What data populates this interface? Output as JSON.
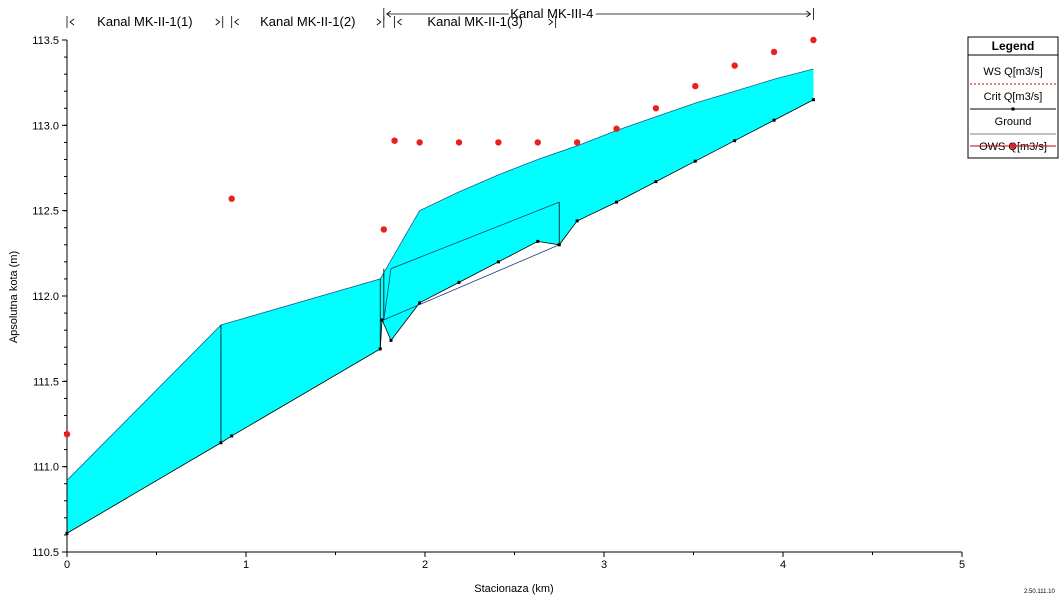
{
  "chart_data": {
    "type": "line",
    "xlabel": "Stacionaza (km)",
    "ylabel": "Apsolutna kota (m)",
    "xlim": [
      0,
      5
    ],
    "ylim": [
      110.5,
      113.5
    ],
    "x_ticks": [
      "0",
      "1",
      "2",
      "3",
      "4",
      "5"
    ],
    "y_ticks": [
      "110.5",
      "111.0",
      "111.5",
      "112.0",
      "112.5",
      "113.0",
      "113.5"
    ],
    "reaches": [
      {
        "label": "Kanal MK-II-1(1)",
        "x_start": 0.0,
        "x_end": 0.87
      },
      {
        "label": "Kanal MK-II-1(2)",
        "x_start": 0.92,
        "x_end": 1.77
      },
      {
        "label": "Kanal MK-II-1(3)",
        "x_start": 1.83,
        "x_end": 2.73
      },
      {
        "label": "Kanal MK-III-4",
        "x_start": 1.77,
        "x_end": 4.17
      }
    ],
    "legend": {
      "title": "Legend",
      "position": "top-right",
      "entries": [
        "WS  Q[m3/s]",
        "Crit  Q[m3/s]",
        "Ground",
        "OWS  Q[m3/s]"
      ]
    },
    "series": [
      {
        "name": "Ground",
        "x": [
          0.0,
          0.86,
          0.92,
          1.75,
          1.76,
          1.81,
          1.97,
          2.19,
          2.41,
          2.63,
          2.75,
          2.85,
          3.07,
          3.29,
          3.51,
          3.73,
          3.95,
          4.17
        ],
        "y": [
          110.61,
          111.14,
          111.18,
          111.69,
          111.86,
          111.74,
          111.96,
          112.08,
          112.2,
          112.32,
          112.3,
          112.44,
          112.55,
          112.67,
          112.79,
          112.91,
          113.03,
          113.15
        ]
      },
      {
        "name": "WS  Q[m3/s]",
        "x": [
          0.0,
          0.86,
          1.75,
          1.97,
          2.19,
          2.41,
          2.63,
          2.85,
          3.07,
          3.29,
          3.51,
          3.73,
          3.95,
          4.17
        ],
        "y": [
          110.92,
          111.83,
          112.1,
          112.5,
          112.61,
          112.71,
          112.8,
          112.88,
          112.97,
          113.05,
          113.13,
          113.2,
          113.27,
          113.33
        ]
      },
      {
        "name": "Crit  Q[m3/s]",
        "x": [
          1.77,
          1.81,
          2.75
        ],
        "y": [
          111.86,
          112.16,
          112.55
        ]
      },
      {
        "name": "OWS  Q[m3/s]",
        "x": [
          0.0,
          0.92,
          1.77,
          1.83,
          1.97,
          2.19,
          2.41,
          2.63,
          2.85,
          3.07,
          3.29,
          3.51,
          3.73,
          3.95,
          4.17
        ],
        "y": [
          111.19,
          112.57,
          112.39,
          112.91,
          112.9,
          112.9,
          112.9,
          112.9,
          112.9,
          112.98,
          113.1,
          113.23,
          113.35,
          113.43,
          113.5
        ]
      }
    ],
    "colors": {
      "fill": "#00ffff",
      "ground": "#000000",
      "ows": "#e8211e",
      "legend_ws_line": "#c00000",
      "legend_crit_line": "#000000"
    }
  },
  "corner_label": "2.50.111.10"
}
